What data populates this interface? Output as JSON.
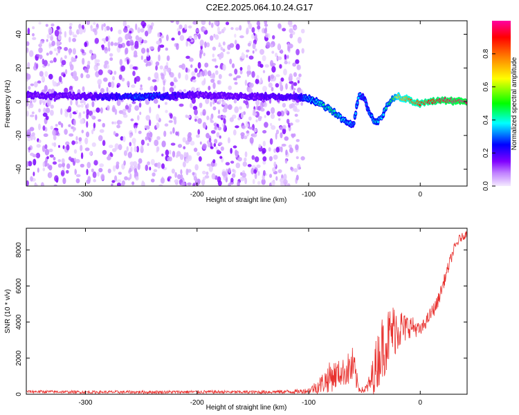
{
  "title": "C2E2.2025.064.10.24.G17",
  "chart_data": [
    {
      "type": "heatmap",
      "xlabel": "Height of straight line (km)",
      "ylabel": "Frequency (Hz)",
      "xlim": [
        -353,
        42
      ],
      "ylim": [
        -50,
        48
      ],
      "x_ticks": [
        -300,
        -200,
        -100,
        0
      ],
      "y_ticks": [
        -40,
        -20,
        0,
        20,
        40
      ],
      "colorbar": {
        "label": "Normalized spectral amplitude",
        "range": [
          0,
          1
        ],
        "ticks": [
          0.0,
          0.2,
          0.4,
          0.6,
          0.8
        ],
        "tick_labels": [
          "0.0",
          "0.2",
          "0.4",
          "0.6",
          "0.8"
        ],
        "colormap": [
          "#f4eaff",
          "#c080ff",
          "#8000ff",
          "#0000ff",
          "#00ffff",
          "#00ff00",
          "#ffff00",
          "#ff8000",
          "#ff0000",
          "#ff00a0"
        ]
      },
      "noise_region_x": [
        -353,
        -105
      ],
      "noise_region_y": [
        -50,
        48
      ],
      "ridge": {
        "x": [
          -353,
          -300,
          -250,
          -200,
          -150,
          -110,
          -100,
          -90,
          -80,
          -70,
          -60,
          -55,
          -50,
          -45,
          -40,
          -35,
          -30,
          -25,
          -20,
          -10,
          0,
          10,
          20,
          42
        ],
        "freq": [
          4,
          3,
          3,
          4,
          3,
          3,
          2,
          -1,
          -5,
          -10,
          -14,
          4,
          2,
          -8,
          -12,
          -10,
          -2,
          1,
          3,
          1,
          -1,
          0,
          1,
          0
        ],
        "amplitude": [
          0.15,
          0.15,
          0.3,
          0.15,
          0.15,
          0.2,
          0.35,
          0.4,
          0.45,
          0.4,
          0.3,
          0.35,
          0.25,
          0.35,
          0.4,
          0.35,
          0.4,
          0.5,
          0.7,
          0.8,
          0.85,
          0.9,
          0.95,
          1.0
        ]
      }
    },
    {
      "type": "line",
      "xlabel": "Height of straight line (km)",
      "ylabel": "SNR (10 * v/v)",
      "xlim": [
        -353,
        42
      ],
      "ylim": [
        0,
        9200
      ],
      "x_ticks": [
        -300,
        -200,
        -100,
        0
      ],
      "y_ticks": [
        0,
        2000,
        4000,
        6000,
        8000
      ],
      "series": [
        {
          "color": "#e8312e",
          "x": [
            -353,
            -300,
            -250,
            -200,
            -150,
            -110,
            -100,
            -90,
            -80,
            -70,
            -60,
            -55,
            -50,
            -45,
            -40,
            -35,
            -30,
            -25,
            -20,
            -15,
            -10,
            -5,
            0,
            5,
            10,
            15,
            20,
            25,
            30,
            35,
            42
          ],
          "y": [
            150,
            120,
            120,
            130,
            120,
            150,
            200,
            500,
            1000,
            1200,
            1500,
            300,
            200,
            600,
            1500,
            2500,
            3000,
            3500,
            3800,
            3600,
            3800,
            3700,
            3500,
            4000,
            4500,
            5000,
            6000,
            7000,
            8000,
            8600,
            8900
          ],
          "noise_amp": [
            80,
            80,
            90,
            90,
            90,
            120,
            150,
            500,
            900,
            700,
            1200,
            200,
            150,
            600,
            1500,
            1800,
            1800,
            1500,
            1500,
            900,
            700,
            500,
            400,
            350,
            400,
            400,
            350,
            350,
            300,
            250,
            200
          ]
        }
      ]
    }
  ]
}
